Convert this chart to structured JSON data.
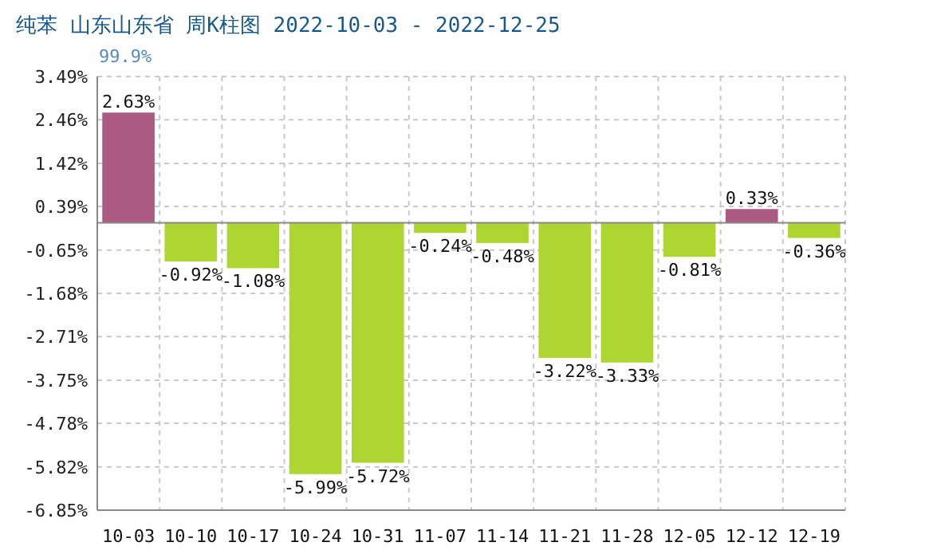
{
  "chart_data": {
    "type": "bar",
    "title": "纯苯 山东山东省 周K柱图 2022-10-03 - 2022-12-25",
    "subtitle": "99.9%",
    "categories": [
      "10-03",
      "10-10",
      "10-17",
      "10-24",
      "10-31",
      "11-07",
      "11-14",
      "11-21",
      "11-28",
      "12-05",
      "12-12",
      "12-19"
    ],
    "values": [
      2.63,
      -0.92,
      -1.08,
      -5.99,
      -5.72,
      -0.24,
      -0.48,
      -3.22,
      -3.33,
      -0.81,
      0.33,
      -0.36
    ],
    "value_labels": [
      "2.63%",
      "-0.92%",
      "-1.08%",
      "-5.99%",
      "-5.72%",
      "-0.24%",
      "-0.48%",
      "-3.22%",
      "-3.33%",
      "-0.81%",
      "0.33%",
      "-0.36%"
    ],
    "colors": [
      "#ad5a82",
      "#add633",
      "#add633",
      "#add633",
      "#add633",
      "#add633",
      "#add633",
      "#add633",
      "#add633",
      "#add633",
      "#ad5a82",
      "#add633"
    ],
    "ylim": [
      -6.85,
      3.49
    ],
    "yticks": [
      {
        "value": 3.49,
        "label": "3.49%"
      },
      {
        "value": 2.46,
        "label": "2.46%"
      },
      {
        "value": 1.42,
        "label": "1.42%"
      },
      {
        "value": 0.39,
        "label": "0.39%"
      },
      {
        "value": -0.65,
        "label": "-0.65%"
      },
      {
        "value": -1.68,
        "label": "-1.68%"
      },
      {
        "value": -2.71,
        "label": "-2.71%"
      },
      {
        "value": -3.75,
        "label": "-3.75%"
      },
      {
        "value": -4.78,
        "label": "-4.78%"
      },
      {
        "value": -5.82,
        "label": "-5.82%"
      },
      {
        "value": -6.85,
        "label": "-6.85%"
      }
    ],
    "grid": true
  }
}
